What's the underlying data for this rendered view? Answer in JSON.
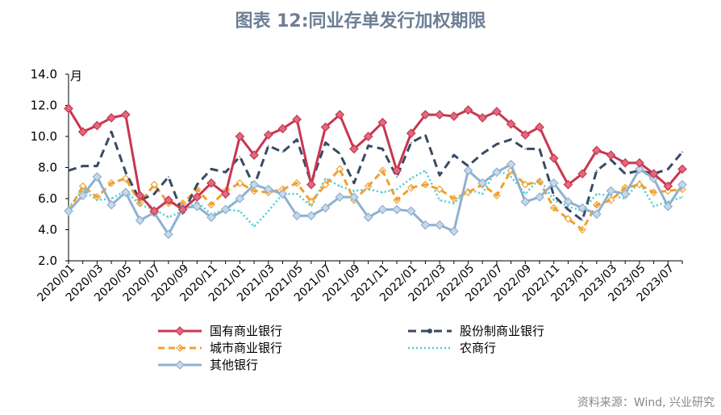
{
  "title": "图表 12:同业存单发行加权期限",
  "source": "资料来源：Wind, 兴业研究",
  "chart_data": {
    "type": "line",
    "title": "图表 12:同业存单发行加权期限",
    "ylabel": "月",
    "ylim": [
      2.0,
      14.0
    ],
    "yticks": [
      "2.0",
      "4.0",
      "6.0",
      "8.0",
      "10.0",
      "12.0",
      "14.0"
    ],
    "x": [
      "2020/01",
      "2020/02",
      "2020/03",
      "2020/04",
      "2020/05",
      "2020/06",
      "2020/07",
      "2020/08",
      "2020/09",
      "2020/10",
      "2020/11",
      "2020/12",
      "2021/01",
      "2021/02",
      "2021/03",
      "2021/04",
      "2021/05",
      "2021/06",
      "2021/07",
      "2021/08",
      "2021/09",
      "2021/10",
      "2021/11",
      "2021/12",
      "2022/01",
      "2022/02",
      "2022/03",
      "2022/04",
      "2022/05",
      "2022/06",
      "2022/07",
      "2022/08",
      "2022/09",
      "2022/10",
      "2022/11",
      "2022/12",
      "2023/01",
      "2023/02",
      "2023/03",
      "2023/04",
      "2023/05",
      "2023/06",
      "2023/07",
      "2023/08"
    ],
    "xticks": [
      "2020/01",
      "2020/03",
      "2020/05",
      "2020/07",
      "2020/09",
      "2020/11",
      "2021/01",
      "2021/03",
      "2021/05",
      "2021/07",
      "2021/09",
      "2021/11",
      "2022/01",
      "2022/03",
      "2022/05",
      "2022/07",
      "2022/09",
      "2022/11",
      "2023/01",
      "2023/03",
      "2023/05",
      "2023/07"
    ],
    "legend_position": "bottom",
    "series": [
      {
        "name": "国有商业银行",
        "color": "#c8364f",
        "style": "solid-diamond",
        "values": [
          11.8,
          10.3,
          10.7,
          11.2,
          11.4,
          6.2,
          5.2,
          5.9,
          5.3,
          6.1,
          7.0,
          6.3,
          10.0,
          8.8,
          10.1,
          10.5,
          11.1,
          6.9,
          10.6,
          11.4,
          9.2,
          10.0,
          10.9,
          7.8,
          10.2,
          11.4,
          11.4,
          11.3,
          11.7,
          11.2,
          11.6,
          10.8,
          10.1,
          10.6,
          8.6,
          6.9,
          7.6,
          9.1,
          8.8,
          8.3,
          8.3,
          7.6,
          6.8,
          7.9
        ]
      },
      {
        "name": "股份制商业银行",
        "color": "#384a64",
        "style": "dashed",
        "values": [
          7.8,
          8.1,
          8.1,
          10.3,
          7.7,
          5.9,
          6.3,
          7.4,
          5.0,
          6.9,
          7.9,
          7.7,
          8.7,
          6.8,
          9.4,
          9.0,
          9.8,
          7.0,
          9.6,
          8.9,
          7.0,
          9.4,
          9.2,
          7.4,
          9.6,
          10.1,
          7.5,
          8.8,
          8.1,
          8.9,
          9.5,
          9.8,
          9.2,
          9.2,
          6.2,
          5.3,
          4.6,
          7.8,
          8.5,
          7.6,
          7.8,
          7.6,
          7.9,
          9.0
        ]
      },
      {
        "name": "城市商业银行",
        "color": "#f0a030",
        "style": "dashed-diamond",
        "values": [
          5.2,
          6.8,
          6.1,
          7.0,
          7.3,
          5.7,
          6.9,
          5.7,
          5.7,
          6.6,
          5.6,
          6.5,
          7.0,
          6.5,
          6.4,
          6.6,
          7.0,
          5.8,
          6.9,
          7.9,
          5.9,
          6.8,
          7.8,
          5.9,
          6.7,
          6.9,
          6.6,
          6.0,
          6.4,
          6.9,
          6.2,
          7.8,
          6.9,
          7.1,
          5.4,
          4.7,
          4.0,
          5.6,
          5.9,
          6.7,
          6.9,
          6.4,
          6.5,
          6.6
        ]
      },
      {
        "name": "农商行",
        "color": "#49cfcf",
        "style": "dotted",
        "values": [
          5.4,
          6.6,
          5.9,
          6.0,
          6.5,
          5.6,
          5.3,
          4.8,
          5.2,
          5.8,
          5.0,
          5.3,
          5.2,
          4.2,
          5.2,
          6.3,
          6.3,
          5.5,
          7.3,
          6.8,
          6.5,
          6.6,
          6.4,
          6.6,
          7.3,
          7.8,
          5.9,
          5.7,
          6.6,
          6.3,
          7.9,
          7.4,
          6.3,
          7.3,
          5.9,
          5.5,
          5.2,
          6.3,
          6.2,
          6.0,
          7.1,
          5.5,
          5.8,
          6.1
        ]
      },
      {
        "name": "其他银行",
        "color": "#8fb1d0",
        "style": "solid-diamond",
        "values": [
          5.2,
          6.2,
          7.4,
          5.6,
          6.4,
          4.6,
          5.1,
          3.7,
          5.4,
          5.5,
          4.8,
          5.3,
          6.0,
          6.9,
          6.6,
          6.3,
          4.9,
          4.9,
          5.4,
          6.1,
          6.1,
          4.8,
          5.3,
          5.3,
          5.2,
          4.3,
          4.3,
          3.9,
          7.8,
          7.0,
          7.7,
          8.2,
          5.8,
          6.1,
          7.0,
          5.8,
          5.4,
          5.0,
          6.5,
          6.3,
          7.9,
          7.3,
          5.5,
          6.9
        ]
      }
    ]
  }
}
